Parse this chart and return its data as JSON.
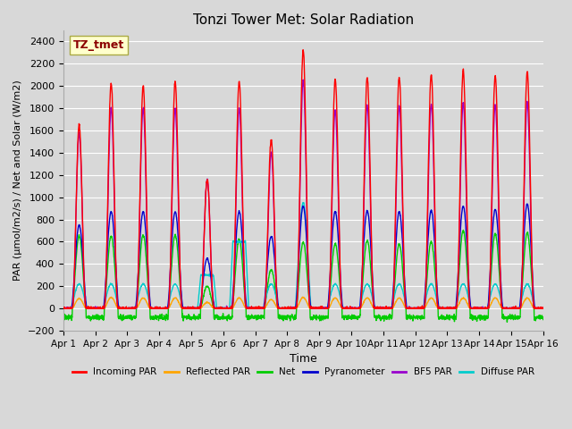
{
  "title": "Tonzi Tower Met: Solar Radiation",
  "xlabel": "Time",
  "ylabel": "PAR (μmol/m2/s) / Net and Solar (W/m2)",
  "ylim": [
    -200,
    2500
  ],
  "yticks": [
    -200,
    0,
    200,
    400,
    600,
    800,
    1000,
    1200,
    1400,
    1600,
    1800,
    2000,
    2200,
    2400
  ],
  "xlim": [
    0,
    15
  ],
  "xtick_labels": [
    "Apr 1",
    "Apr 2",
    "Apr 3",
    "Apr 4",
    "Apr 5",
    "Apr 6",
    "Apr 7",
    "Apr 8",
    "Apr 9",
    "Apr 10",
    "Apr 11",
    "Apr 12",
    "Apr 13",
    "Apr 14",
    "Apr 15",
    "Apr 16"
  ],
  "background_color": "#d8d8d8",
  "plot_bg_color": "#d8d8d8",
  "grid_color": "#ffffff",
  "annotation_label": "TZ_tmet",
  "annotation_color": "#8b0000",
  "annotation_bg": "#ffffcc",
  "legend_entries": [
    "Incoming PAR",
    "Reflected PAR",
    "Net",
    "Pyranometer",
    "BF5 PAR",
    "Diffuse PAR"
  ],
  "legend_colors": [
    "#ff0000",
    "#ffa500",
    "#00cc00",
    "#0000cc",
    "#9900cc",
    "#00cccc"
  ],
  "line_width": 1.0,
  "n_days": 15,
  "points_per_day": 144,
  "incoming_peaks": [
    1650,
    2020,
    2000,
    2040,
    1160,
    2040,
    1520,
    2320,
    2060,
    2080,
    2080,
    2100,
    2140,
    2090,
    2130
  ],
  "bf5_peaks": [
    1580,
    1800,
    1800,
    1800,
    1160,
    1800,
    1400,
    2050,
    1780,
    1820,
    1820,
    1840,
    1850,
    1830,
    1850
  ],
  "pyrano_peaks": [
    750,
    870,
    870,
    870,
    450,
    870,
    650,
    920,
    870,
    880,
    870,
    880,
    920,
    890,
    940
  ],
  "net_peaks": [
    650,
    650,
    660,
    660,
    200,
    620,
    350,
    600,
    580,
    610,
    580,
    600,
    700,
    670,
    680
  ],
  "reflected_peaks": [
    90,
    100,
    95,
    95,
    55,
    95,
    80,
    100,
    95,
    95,
    95,
    95,
    95,
    95,
    95
  ],
  "diffuse_day5_peak": 300,
  "diffuse_day6_peak": 600,
  "diffuse_day7_peak": 950,
  "diffuse_regular_peak": 220
}
